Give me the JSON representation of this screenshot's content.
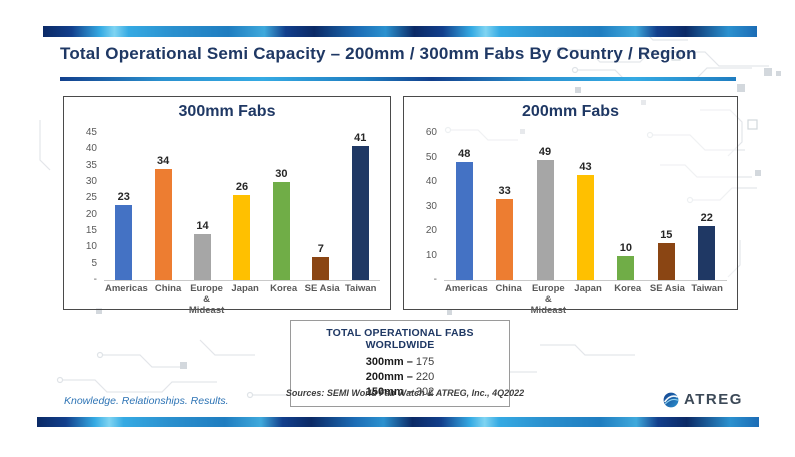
{
  "slide": {
    "title": "Total Operational Semi Capacity – 200mm / 300mm Fabs By Country / Region"
  },
  "chart_data": [
    {
      "type": "bar",
      "title": "300mm Fabs",
      "categories": [
        "Americas",
        "China",
        "Europe & Mideast",
        "Japan",
        "Korea",
        "SE Asia",
        "Taiwan"
      ],
      "values": [
        23,
        34,
        14,
        26,
        30,
        7,
        41
      ],
      "bar_colors": [
        "#4472c4",
        "#ed7d31",
        "#a6a6a6",
        "#ffc000",
        "#70ad47",
        "#8a4513",
        "#1f3864"
      ],
      "ylim": [
        0,
        45
      ],
      "yticks": [
        45,
        40,
        35,
        30,
        25,
        20,
        15,
        10,
        5,
        0
      ],
      "ytick_labels": [
        "45",
        "40",
        "35",
        "30",
        "25",
        "20",
        "15",
        "10",
        "5",
        "-"
      ],
      "xlabel": "",
      "ylabel": "",
      "grid": false,
      "legend": "none",
      "data_labels": true
    },
    {
      "type": "bar",
      "title": "200mm Fabs",
      "categories": [
        "Americas",
        "China",
        "Europe & Mideast",
        "Japan",
        "Korea",
        "SE Asia",
        "Taiwan"
      ],
      "values": [
        48,
        33,
        49,
        43,
        10,
        15,
        22
      ],
      "bar_colors": [
        "#4472c4",
        "#ed7d31",
        "#a6a6a6",
        "#ffc000",
        "#70ad47",
        "#8a4513",
        "#1f3864"
      ],
      "ylim": [
        0,
        60
      ],
      "yticks": [
        60,
        50,
        40,
        30,
        20,
        10,
        0
      ],
      "ytick_labels": [
        "60",
        "50",
        "40",
        "30",
        "20",
        "10",
        "-"
      ],
      "xlabel": "",
      "ylabel": "",
      "grid": false,
      "legend": "none",
      "data_labels": true
    }
  ],
  "summary_box": {
    "title": "TOTAL OPERATIONAL FABS WORLDWIDE",
    "rows": [
      {
        "label": "300mm –",
        "value": "175"
      },
      {
        "label": "200mm –",
        "value": "220"
      },
      {
        "label": "150mm –",
        "value": "302"
      }
    ]
  },
  "footer": {
    "tagline": "Knowledge. Relationships. Results.",
    "sources": "Sources: SEMI World Fab Watch & ATREG, Inc., 4Q2022",
    "logo_text": "ATREG"
  },
  "icons": {
    "logo_icon": "globe-icon"
  },
  "colors": {
    "title_navy": "#1f3864",
    "tagline_blue": "#2e74b5",
    "accent_blue": "#2b91cf",
    "axis_gray": "#595959"
  }
}
